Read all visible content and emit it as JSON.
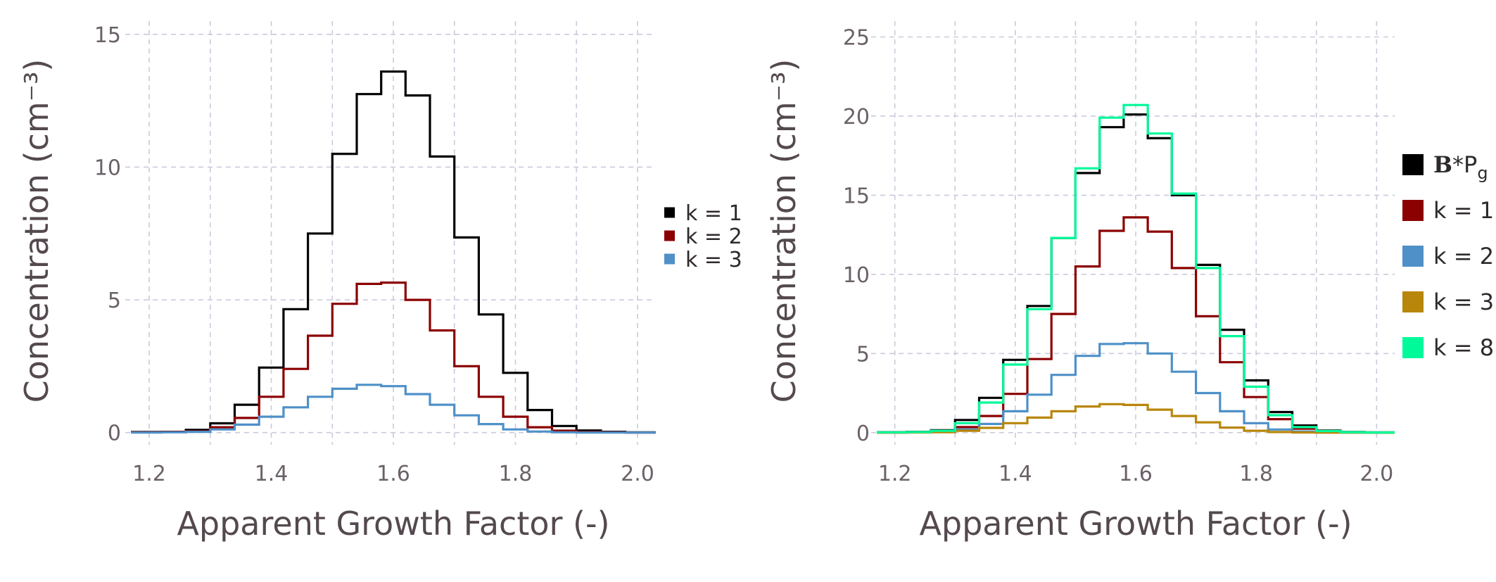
{
  "chart_data": [
    {
      "type": "line",
      "step": true,
      "xlabel": "Apparent Growth Factor (-)",
      "ylabel": "Concentration (cm⁻³)",
      "xlim": [
        1.17,
        2.03
      ],
      "ylim": [
        -0.3,
        15.5
      ],
      "xticks": [
        1.2,
        1.4,
        1.6,
        1.8,
        2.0
      ],
      "xtick_labels": [
        "1.2",
        "1.4",
        "1.6",
        "1.8",
        "2.0"
      ],
      "yticks": [
        0,
        5,
        10,
        15
      ],
      "ytick_labels": [
        "0",
        "5",
        "10",
        "15"
      ],
      "grid": true,
      "legend_position": "right",
      "bin_edges": [
        1.17,
        1.22,
        1.26,
        1.3,
        1.34,
        1.38,
        1.42,
        1.46,
        1.5,
        1.54,
        1.58,
        1.62,
        1.66,
        1.7,
        1.74,
        1.78,
        1.82,
        1.86,
        1.9,
        1.94,
        1.98,
        2.03
      ],
      "series": [
        {
          "name": "k = 1",
          "color": "#000000",
          "values": [
            0.02,
            0.03,
            0.1,
            0.35,
            1.05,
            2.45,
            4.65,
            7.5,
            10.5,
            12.75,
            13.6,
            12.7,
            10.4,
            7.35,
            4.45,
            2.25,
            0.85,
            0.25,
            0.08,
            0.03,
            0.01
          ]
        },
        {
          "name": "k = 2",
          "color": "#8b0000",
          "values": [
            0.01,
            0.02,
            0.05,
            0.2,
            0.55,
            1.35,
            2.4,
            3.65,
            4.85,
            5.6,
            5.65,
            5.0,
            3.85,
            2.5,
            1.35,
            0.6,
            0.2,
            0.07,
            0.02,
            0.01,
            0.0
          ]
        },
        {
          "name": "k = 3",
          "color": "#4f90c8",
          "values": [
            0.0,
            0.01,
            0.03,
            0.12,
            0.3,
            0.6,
            0.95,
            1.35,
            1.65,
            1.8,
            1.75,
            1.45,
            1.05,
            0.65,
            0.32,
            0.12,
            0.04,
            0.01,
            0.0,
            0.0,
            0.0
          ]
        }
      ]
    },
    {
      "type": "line",
      "step": true,
      "xlabel": "Apparent Growth Factor (-)",
      "ylabel": "Concentration (cm⁻³)",
      "xlim": [
        1.17,
        2.03
      ],
      "ylim": [
        -0.5,
        26
      ],
      "xticks": [
        1.2,
        1.4,
        1.6,
        1.8,
        2.0
      ],
      "xtick_labels": [
        "1.2",
        "1.4",
        "1.6",
        "1.8",
        "2.0"
      ],
      "yticks": [
        0,
        5,
        10,
        15,
        20,
        25
      ],
      "ytick_labels": [
        "0",
        "5",
        "10",
        "15",
        "20",
        "25"
      ],
      "grid": true,
      "legend_position": "right",
      "bin_edges": [
        1.17,
        1.22,
        1.26,
        1.3,
        1.34,
        1.38,
        1.42,
        1.46,
        1.5,
        1.54,
        1.58,
        1.62,
        1.66,
        1.7,
        1.74,
        1.78,
        1.82,
        1.86,
        1.9,
        1.94,
        1.98,
        2.03
      ],
      "series": [
        {
          "name": "B*Pg",
          "name_bold_part": "B",
          "name_rest": "*P",
          "name_sub": "g",
          "color": "#000000",
          "values": [
            0.03,
            0.05,
            0.15,
            0.8,
            2.2,
            4.6,
            8.0,
            12.3,
            16.4,
            19.3,
            20.1,
            18.6,
            15.0,
            10.6,
            6.5,
            3.3,
            1.3,
            0.45,
            0.13,
            0.04,
            0.01
          ]
        },
        {
          "name": "k = 1",
          "color": "#8b0000",
          "values": [
            0.02,
            0.03,
            0.1,
            0.35,
            1.05,
            2.45,
            4.65,
            7.5,
            10.5,
            12.75,
            13.6,
            12.7,
            10.4,
            7.35,
            4.45,
            2.25,
            0.85,
            0.25,
            0.08,
            0.03,
            0.01
          ]
        },
        {
          "name": "k = 2",
          "color": "#4f90c8",
          "values": [
            0.01,
            0.02,
            0.05,
            0.2,
            0.55,
            1.35,
            2.4,
            3.65,
            4.85,
            5.6,
            5.65,
            5.0,
            3.85,
            2.5,
            1.35,
            0.6,
            0.2,
            0.07,
            0.02,
            0.01,
            0.0
          ]
        },
        {
          "name": "k = 3",
          "color": "#b8860b",
          "values": [
            0.0,
            0.01,
            0.03,
            0.12,
            0.3,
            0.6,
            0.95,
            1.35,
            1.65,
            1.8,
            1.75,
            1.45,
            1.05,
            0.65,
            0.32,
            0.12,
            0.04,
            0.01,
            0.0,
            0.0,
            0.0
          ]
        },
        {
          "name": "k = 8",
          "color": "#00fa9a",
          "values": [
            0.02,
            0.04,
            0.12,
            0.6,
            1.9,
            4.3,
            7.8,
            12.3,
            16.7,
            19.9,
            20.7,
            18.9,
            15.1,
            10.4,
            6.1,
            2.9,
            1.1,
            0.35,
            0.1,
            0.03,
            0.01
          ]
        }
      ]
    }
  ]
}
